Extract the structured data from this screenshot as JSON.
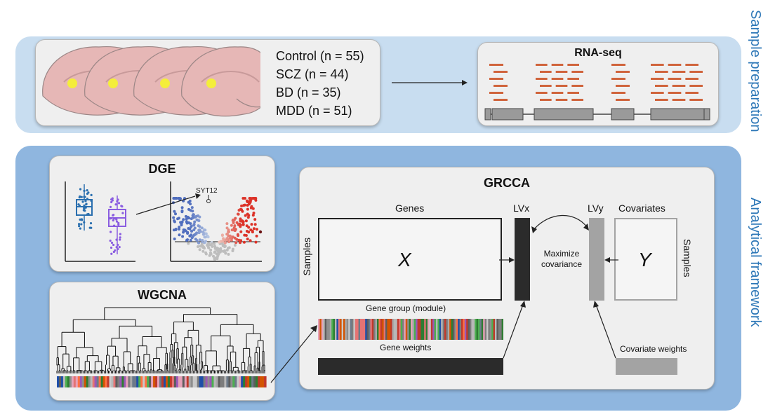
{
  "sections": {
    "sample_prep": "Sample preparation",
    "analytical": "Analytical framework"
  },
  "cohort": {
    "groups": [
      "Control (n = 55)",
      "SCZ (n = 44)",
      "BD (n = 35)",
      "MDD (n = 51)"
    ]
  },
  "rnaseq": {
    "title": "RNA-seq"
  },
  "dge": {
    "title": "DGE",
    "gene_label": "SYT12"
  },
  "wgcna": {
    "title": "WGCNA"
  },
  "grcca": {
    "title": "GRCCA",
    "genes_label": "Genes",
    "samples_left": "Samples",
    "x_label": "X",
    "lvx": "LVx",
    "lvy": "LVy",
    "covariates_label": "Covariates",
    "y_label": "Y",
    "samples_right": "Samples",
    "maximize_line1": "Maximize",
    "maximize_line2": "covariance",
    "gene_group": "Gene group (module)",
    "gene_weights": "Gene weights",
    "covariate_weights": "Covariate weights"
  },
  "colors": {
    "outer_top": "#c8ddf0",
    "outer_bottom": "#8fb6df",
    "card": "#efefef",
    "accent_blue": "#2d77b7",
    "reads": "#d0643c",
    "exon": "#9a9a9a",
    "dark_bar": "#2b2b2b",
    "light_bar": "#a3a3a3"
  }
}
